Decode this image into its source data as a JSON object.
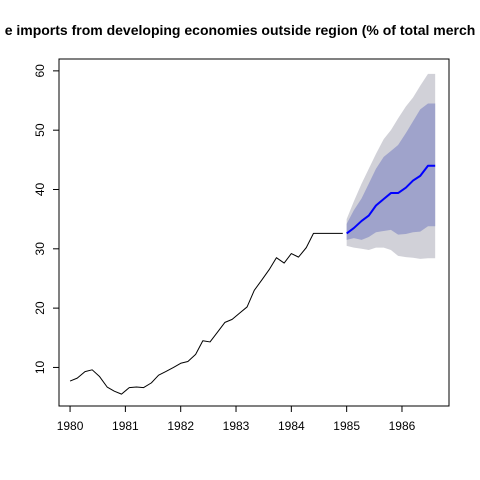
{
  "chart_data": {
    "type": "line",
    "title": "e imports from developing economies outside region (% of total merch",
    "xlabel": "",
    "ylabel": "",
    "xlim": [
      1979.8,
      1986.85
    ],
    "ylim": [
      3.5,
      62
    ],
    "x_ticks": [
      "1980",
      "1981",
      "1982",
      "1983",
      "1984",
      "1985",
      "1986"
    ],
    "y_ticks": [
      "10",
      "20",
      "30",
      "40",
      "50",
      "60"
    ],
    "grid": false,
    "series": [
      {
        "role": "observed",
        "color": "#000000",
        "x": [
          1980.0,
          1980.13,
          1980.27,
          1980.4,
          1980.53,
          1980.67,
          1980.8,
          1980.93,
          1981.07,
          1981.2,
          1981.33,
          1981.47,
          1981.6,
          1981.73,
          1981.87,
          1982.0,
          1982.13,
          1982.27,
          1982.4,
          1982.53,
          1982.67,
          1982.8,
          1982.93,
          1983.07,
          1983.2,
          1983.33,
          1983.47,
          1983.6,
          1983.73,
          1983.87,
          1984.0,
          1984.13,
          1984.27,
          1984.4,
          1984.53,
          1984.67,
          1984.8,
          1984.93
        ],
        "y": [
          7.7,
          8.2,
          9.3,
          9.6,
          8.5,
          6.7,
          6.0,
          5.5,
          6.6,
          6.7,
          6.6,
          7.4,
          8.7,
          9.3,
          10.0,
          10.7,
          11.0,
          12.2,
          14.5,
          14.3,
          16.0,
          17.6,
          18.1,
          19.2,
          20.2,
          23.0,
          24.8,
          26.5,
          28.5,
          27.6,
          29.2,
          28.6,
          30.2,
          32.6,
          32.6,
          32.6,
          32.6,
          32.6
        ]
      },
      {
        "role": "forecast-mean",
        "color": "#0000ff",
        "x": [
          1985.0,
          1985.13,
          1985.27,
          1985.4,
          1985.53,
          1985.67,
          1985.8,
          1985.93,
          1986.07,
          1986.2,
          1986.33,
          1986.47,
          1986.6
        ],
        "y": [
          32.6,
          33.5,
          34.7,
          35.6,
          37.3,
          38.4,
          39.4,
          39.4,
          40.3,
          41.5,
          42.3,
          44.0,
          44.0
        ]
      }
    ],
    "bands": [
      {
        "level": "95%",
        "color": "#d1d1d8",
        "x": [
          1985.0,
          1985.13,
          1985.27,
          1985.4,
          1985.53,
          1985.67,
          1985.8,
          1985.93,
          1986.07,
          1986.2,
          1986.33,
          1986.47,
          1986.6
        ],
        "upper": [
          35.0,
          38.0,
          41.0,
          43.5,
          46.0,
          48.5,
          50.0,
          52.0,
          54.0,
          55.5,
          57.5,
          59.5,
          59.5
        ],
        "lower": [
          30.5,
          30.2,
          30.0,
          29.8,
          30.2,
          30.2,
          29.8,
          28.8,
          28.6,
          28.5,
          28.3,
          28.4,
          28.4
        ]
      },
      {
        "level": "80%",
        "color": "#9fa3cb",
        "x": [
          1985.0,
          1985.13,
          1985.27,
          1985.4,
          1985.53,
          1985.67,
          1985.8,
          1985.93,
          1986.07,
          1986.2,
          1986.33,
          1986.47,
          1986.6
        ],
        "upper": [
          34.2,
          36.5,
          38.5,
          41.0,
          43.5,
          45.5,
          46.5,
          47.5,
          49.5,
          51.5,
          53.5,
          54.5,
          54.5
        ],
        "lower": [
          31.5,
          31.8,
          31.5,
          32.0,
          32.8,
          33.0,
          33.2,
          32.4,
          32.5,
          32.8,
          32.9,
          33.8,
          33.8
        ]
      }
    ]
  }
}
